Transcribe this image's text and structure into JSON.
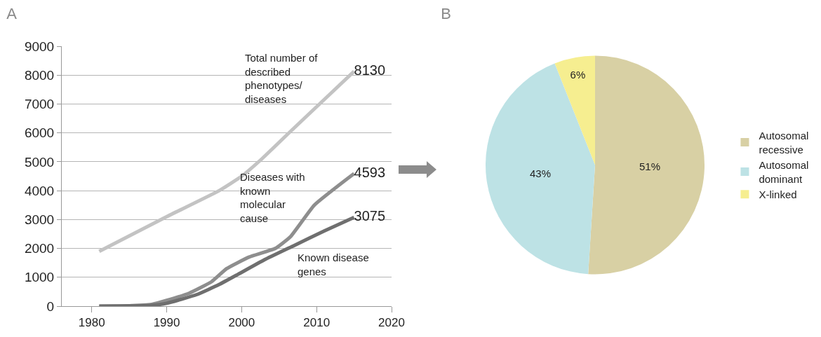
{
  "chart_data": [
    {
      "type": "line",
      "title": "A",
      "xlim": [
        1976,
        2020
      ],
      "xticks": [
        1980,
        1990,
        2000,
        2010,
        2020
      ],
      "ylim": [
        0,
        9000
      ],
      "yticks": [
        0,
        1000,
        2000,
        3000,
        4000,
        5000,
        6000,
        7000,
        8000,
        9000
      ],
      "grid": "y",
      "legend": false,
      "marker": "none",
      "line_style": "solid",
      "series": [
        {
          "name": "Total number of described phenotypes/ diseases",
          "color": "#c3c3c3",
          "x": [
            1981,
            1990,
            1997,
            2000,
            2002.7,
            2006.6,
            2011.2,
            2015
          ],
          "values": [
            1900,
            3100,
            4000,
            4500,
            5100,
            6070,
            7200,
            8130
          ],
          "value_labels": [
            null,
            null,
            null,
            null,
            null,
            null,
            null,
            "8130"
          ]
        },
        {
          "name": "Diseases with known molecular cause",
          "color": "#8e8e8e",
          "x": [
            1981,
            1985,
            1988,
            1990,
            1993,
            1996,
            1998,
            2001,
            2004.5,
            2006.5,
            2009.7,
            2015
          ],
          "values": [
            0,
            10,
            60,
            200,
            450,
            850,
            1300,
            1700,
            2000,
            2400,
            3500,
            4593
          ],
          "value_labels": [
            null,
            null,
            null,
            null,
            null,
            null,
            null,
            null,
            null,
            null,
            null,
            "4593"
          ]
        },
        {
          "name": "Known disease genes",
          "color": "#6f6f6f",
          "x": [
            1981,
            1988,
            1990,
            1994,
            1997,
            1999.5,
            2003,
            2007,
            2011,
            2015
          ],
          "values": [
            0,
            30,
            100,
            400,
            750,
            1100,
            1600,
            2100,
            2600,
            3075
          ],
          "value_labels": [
            null,
            null,
            null,
            null,
            null,
            null,
            null,
            null,
            null,
            "3075"
          ]
        }
      ]
    },
    {
      "type": "pie",
      "title": "B",
      "categories": [
        "Autosomal recessive",
        "Autosomal dominant",
        "X-linked"
      ],
      "values": [
        51,
        43,
        6
      ],
      "colors": [
        "#d8d0a4",
        "#bde2e5",
        "#f6ee90"
      ],
      "value_labels": [
        "51%",
        "43%",
        "6%"
      ],
      "legend": "right"
    }
  ]
}
